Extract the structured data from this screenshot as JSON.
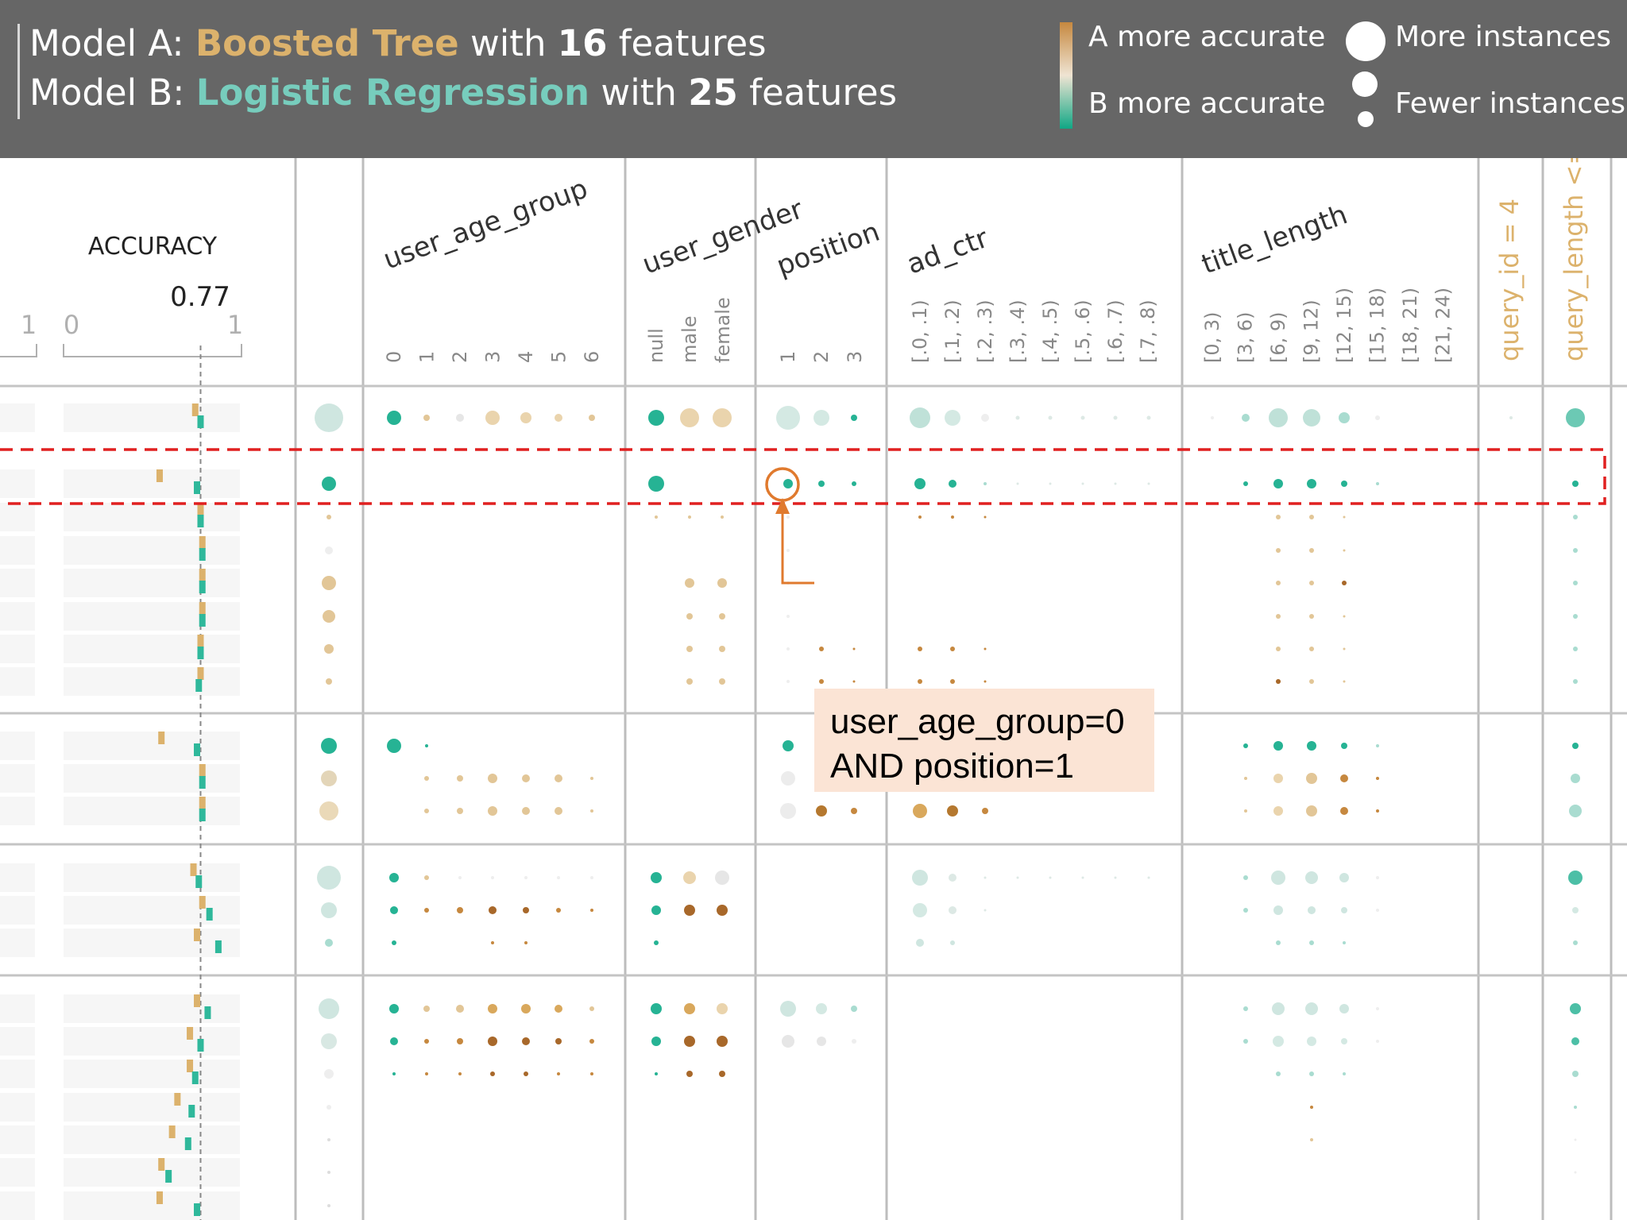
{
  "header": {
    "model_a": {
      "prefix": "Model A: ",
      "name": "Boosted Tree",
      "with": " with ",
      "count": "16",
      "suffix": " features"
    },
    "model_b": {
      "prefix": "Model B: ",
      "name": "Logistic Regression",
      "with": " with ",
      "count": "25",
      "suffix": " features"
    },
    "legend": {
      "a_more_accurate": "A more accurate",
      "b_more_accurate": "B more accurate",
      "more_instances": "More instances",
      "fewer_instances": "Fewer instances"
    }
  },
  "colors": {
    "model_a": "#dcb26c",
    "model_b": "#77cdbd",
    "a_strong": "#c6883f",
    "b_strong": "#10a785",
    "header_bg": "#666666",
    "annotation_red": "#e02020",
    "highlight_orange": "#e07a2e",
    "tooltip_bg": "#fbe4d5"
  },
  "accuracy_panel": {
    "title": "ACCURACY",
    "reference_value": "0.77",
    "left_tick_1": "1",
    "left_tick_0": "0",
    "right_tick_1": "1"
  },
  "columns": [
    {
      "name": "user_age_group",
      "ticks": [
        "0",
        "1",
        "2",
        "3",
        "4",
        "5",
        "6"
      ]
    },
    {
      "name": "user_gender",
      "ticks": [
        "null",
        "male",
        "female"
      ]
    },
    {
      "name": "position",
      "ticks": [
        "1",
        "2",
        "3"
      ]
    },
    {
      "name": "ad_ctr",
      "ticks": [
        "[.0, .1)",
        "[.1, .2)",
        "[.2, .3)",
        "[.3, .4)",
        "[.4, .5)",
        "[.5, .6)",
        "[.6, .7)",
        "[.7, .8)"
      ]
    },
    {
      "name": "title_length",
      "ticks": [
        "[0, 3)",
        "[3, 6)",
        "[6, 9)",
        "[9, 12)",
        "[12, 15)",
        "[15, 18)",
        "[18, 21)",
        "[21, 24)"
      ]
    },
    {
      "name": "query_id = 4",
      "ticks": []
    },
    {
      "name": "query_length <=",
      "ticks": []
    }
  ],
  "tooltip": {
    "line1": "user_age_group=0",
    "line2": "AND position=1"
  },
  "accuracy_rows": [
    {
      "group": 1,
      "a": 0.74,
      "b": 0.77
    },
    {
      "group": 2,
      "a": 0.54,
      "b": 0.75
    },
    {
      "group": 2,
      "a": 0.77,
      "b": 0.77
    },
    {
      "group": 2,
      "a": 0.78,
      "b": 0.78
    },
    {
      "group": 2,
      "a": 0.78,
      "b": 0.78
    },
    {
      "group": 2,
      "a": 0.78,
      "b": 0.78
    },
    {
      "group": 2,
      "a": 0.77,
      "b": 0.77
    },
    {
      "group": 2,
      "a": 0.77,
      "b": 0.76
    },
    {
      "group": 3,
      "a": 0.55,
      "b": 0.75
    },
    {
      "group": 3,
      "a": 0.78,
      "b": 0.78
    },
    {
      "group": 3,
      "a": 0.78,
      "b": 0.78
    },
    {
      "group": 4,
      "a": 0.73,
      "b": 0.76
    },
    {
      "group": 4,
      "a": 0.78,
      "b": 0.82
    },
    {
      "group": 4,
      "a": 0.75,
      "b": 0.87
    },
    {
      "group": 5,
      "a": 0.75,
      "b": 0.81
    },
    {
      "group": 5,
      "a": 0.71,
      "b": 0.77
    },
    {
      "group": 5,
      "a": 0.71,
      "b": 0.74
    },
    {
      "group": 5,
      "a": 0.64,
      "b": 0.72
    },
    {
      "group": 5,
      "a": 0.61,
      "b": 0.7
    },
    {
      "group": 5,
      "a": 0.55,
      "b": 0.59
    },
    {
      "group": 5,
      "a": 0.54,
      "b": 0.75
    }
  ]
}
